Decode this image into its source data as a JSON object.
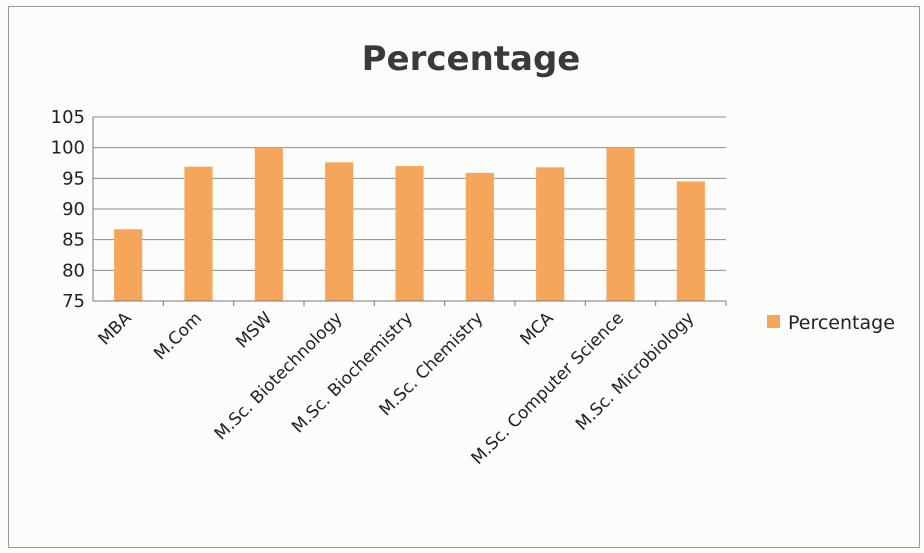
{
  "chart_data": {
    "type": "bar",
    "title": "Percentage",
    "categories": [
      "MBA",
      "M.Com",
      "MSW",
      "M.Sc. Biotechnology",
      "M.Sc. Biochemistry",
      "M.Sc. Chemistry",
      "MCA",
      "M.Sc. Computer Science",
      "M.Sc. Microbiology"
    ],
    "series": [
      {
        "name": "Percentage",
        "values": [
          86.7,
          96.9,
          100,
          97.6,
          97.0,
          95.9,
          96.8,
          100,
          94.5
        ],
        "color": "#f5a65b"
      }
    ],
    "ylim": [
      75,
      105
    ],
    "yticks": [
      "75",
      "80",
      "85",
      "90",
      "95",
      "100",
      "105"
    ],
    "grid": true,
    "legend": "right"
  }
}
